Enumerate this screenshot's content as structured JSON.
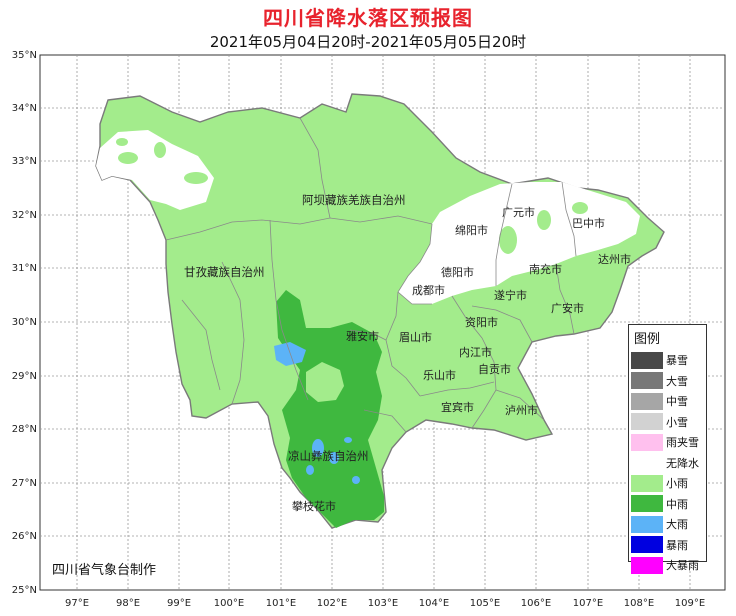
{
  "header": {
    "title": "四川省降水落区预报图",
    "subtitle": "2021年05月04日20时-2021年05月05日20时"
  },
  "axes": {
    "lat_labels": [
      "35°N",
      "34°N",
      "33°N",
      "32°N",
      "31°N",
      "30°N",
      "29°N",
      "28°N",
      "27°N",
      "26°N",
      "25°N"
    ],
    "lon_labels": [
      "97°E",
      "98°E",
      "99°E",
      "100°E",
      "101°E",
      "102°E",
      "103°E",
      "104°E",
      "105°E",
      "106°E",
      "107°E",
      "108°E",
      "109°E"
    ]
  },
  "regions": {
    "aba": "阿坝藏族羌族自治州",
    "ganzi": "甘孜藏族自治州",
    "liangshan": "凉山彝族自治州"
  },
  "cities": {
    "mianyang": "绵阳市",
    "guangyuan": "广元市",
    "bazhong": "巴中市",
    "deyang": "德阳市",
    "chengdu": "成都市",
    "nanchong": "南充市",
    "dazhou": "达州市",
    "suining": "遂宁市",
    "guangan": "广安市",
    "yaan": "雅安市",
    "meishan": "眉山市",
    "ziyang": "资阳市",
    "neijiang": "内江市",
    "leshan": "乐山市",
    "zigong": "自贡市",
    "yibin": "宜宾市",
    "luzhou": "泸州市",
    "panzhihua": "攀枝花市"
  },
  "legend": {
    "title": "图例",
    "items": [
      {
        "label": "暴雪",
        "color": "#484848"
      },
      {
        "label": "大雪",
        "color": "#787878"
      },
      {
        "label": "中雪",
        "color": "#a6a6a6"
      },
      {
        "label": "小雪",
        "color": "#d2d2d2"
      },
      {
        "label": "雨夹雪",
        "color": "#ffc0ee"
      },
      {
        "label": "无降水",
        "color": "#ffffff"
      },
      {
        "label": "小雨",
        "color": "#a3ec8c"
      },
      {
        "label": "中雨",
        "color": "#3fb83f"
      },
      {
        "label": "大雨",
        "color": "#5cb3f7"
      },
      {
        "label": "暴雨",
        "color": "#0000e0"
      },
      {
        "label": "大暴雨",
        "color": "#ff00ff"
      }
    ]
  },
  "footer": {
    "credit": "四川省气象台制作"
  }
}
